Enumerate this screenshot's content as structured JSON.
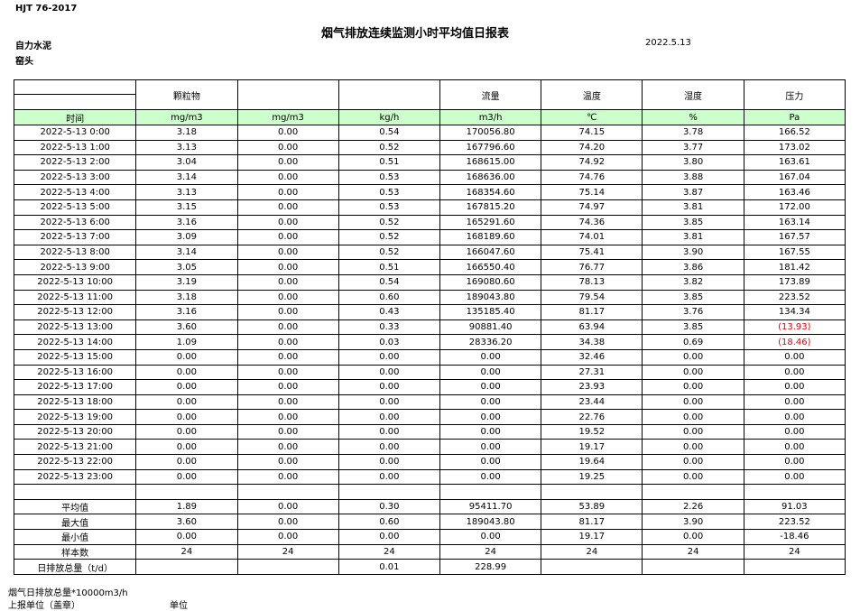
{
  "header": {
    "code": "HJT  76-2017",
    "title": "烟气排放连续监测小时平均值日报表",
    "company": "自力水泥",
    "date": "2022.5.13",
    "location": "窑头"
  },
  "table": {
    "header": [
      null,
      "颗粒物",
      null,
      null,
      "流量",
      "温度",
      "湿度",
      "压力"
    ],
    "units": [
      "时间",
      "mg/m3",
      "mg/m3",
      "kg/h",
      "m3/h",
      "℃",
      "%",
      "Pa"
    ],
    "rows": [
      [
        "2022-5-13 0:00",
        "3.18",
        "0.00",
        "0.54",
        "170056.80",
        "74.15",
        "3.78",
        "166.52"
      ],
      [
        "2022-5-13 1:00",
        "3.13",
        "0.00",
        "0.52",
        "167796.60",
        "74.20",
        "3.77",
        "173.02"
      ],
      [
        "2022-5-13 2:00",
        "3.04",
        "0.00",
        "0.51",
        "168615.00",
        "74.92",
        "3.80",
        "163.61"
      ],
      [
        "2022-5-13 3:00",
        "3.14",
        "0.00",
        "0.53",
        "168636.00",
        "74.76",
        "3.88",
        "167.04"
      ],
      [
        "2022-5-13 4:00",
        "3.13",
        "0.00",
        "0.53",
        "168354.60",
        "75.14",
        "3.87",
        "163.46"
      ],
      [
        "2022-5-13 5:00",
        "3.15",
        "0.00",
        "0.53",
        "167815.20",
        "74.97",
        "3.81",
        "172.00"
      ],
      [
        "2022-5-13 6:00",
        "3.16",
        "0.00",
        "0.52",
        "165291.60",
        "74.36",
        "3.85",
        "163.14"
      ],
      [
        "2022-5-13 7:00",
        "3.09",
        "0.00",
        "0.52",
        "168189.60",
        "74.01",
        "3.81",
        "167.57"
      ],
      [
        "2022-5-13 8:00",
        "3.14",
        "0.00",
        "0.52",
        "166047.60",
        "75.41",
        "3.90",
        "167.55"
      ],
      [
        "2022-5-13 9:00",
        "3.05",
        "0.00",
        "0.51",
        "166550.40",
        "76.77",
        "3.86",
        "181.42"
      ],
      [
        "2022-5-13 10:00",
        "3.19",
        "0.00",
        "0.54",
        "169080.60",
        "78.13",
        "3.82",
        "173.89"
      ],
      [
        "2022-5-13 11:00",
        "3.18",
        "0.00",
        "0.60",
        "189043.80",
        "79.54",
        "3.85",
        "223.52"
      ],
      [
        "2022-5-13 12:00",
        "3.16",
        "0.00",
        "0.43",
        "135185.40",
        "81.17",
        "3.76",
        "134.34"
      ],
      [
        "2022-5-13 13:00",
        "3.60",
        "0.00",
        "0.33",
        "90881.40",
        "63.94",
        "3.85",
        "(13.93)"
      ],
      [
        "2022-5-13 14:00",
        "1.09",
        "0.00",
        "0.03",
        "28336.20",
        "34.38",
        "0.69",
        "(18.46)"
      ],
      [
        "2022-5-13 15:00",
        "0.00",
        "0.00",
        "0.00",
        "0.00",
        "32.46",
        "0.00",
        "0.00"
      ],
      [
        "2022-5-13 16:00",
        "0.00",
        "0.00",
        "0.00",
        "0.00",
        "27.31",
        "0.00",
        "0.00"
      ],
      [
        "2022-5-13 17:00",
        "0.00",
        "0.00",
        "0.00",
        "0.00",
        "23.93",
        "0.00",
        "0.00"
      ],
      [
        "2022-5-13 18:00",
        "0.00",
        "0.00",
        "0.00",
        "0.00",
        "23.44",
        "0.00",
        "0.00"
      ],
      [
        "2022-5-13 19:00",
        "0.00",
        "0.00",
        "0.00",
        "0.00",
        "22.76",
        "0.00",
        "0.00"
      ],
      [
        "2022-5-13 20:00",
        "0.00",
        "0.00",
        "0.00",
        "0.00",
        "19.52",
        "0.00",
        "0.00"
      ],
      [
        "2022-5-13 21:00",
        "0.00",
        "0.00",
        "0.00",
        "0.00",
        "19.17",
        "0.00",
        "0.00"
      ],
      [
        "2022-5-13 22:00",
        "0.00",
        "0.00",
        "0.00",
        "0.00",
        "19.64",
        "0.00",
        "0.00"
      ],
      [
        "2022-5-13 23:00",
        "0.00",
        "0.00",
        "0.00",
        "0.00",
        "19.25",
        "0.00",
        "0.00"
      ]
    ],
    "summary": [
      [
        "平均值",
        "1.89",
        "0.00",
        "0.30",
        "95411.70",
        "53.89",
        "2.26",
        "91.03"
      ],
      [
        "最大值",
        "3.60",
        "0.00",
        "0.60",
        "189043.80",
        "81.17",
        "3.90",
        "223.52"
      ],
      [
        "最小值",
        "0.00",
        "0.00",
        "0.00",
        "0.00",
        "19.17",
        "0.00",
        "-18.46"
      ],
      [
        "样本数",
        "24",
        "24",
        "24",
        "24",
        "24",
        "24",
        "24"
      ],
      [
        "日排放总量（t/d）",
        null,
        null,
        "0.01",
        "228.99",
        null,
        null,
        null
      ]
    ]
  },
  "footer": {
    "note": "烟气日排放总量*10000m3/h",
    "reporter": "上报单位（盖章）",
    "unit": "单位"
  }
}
